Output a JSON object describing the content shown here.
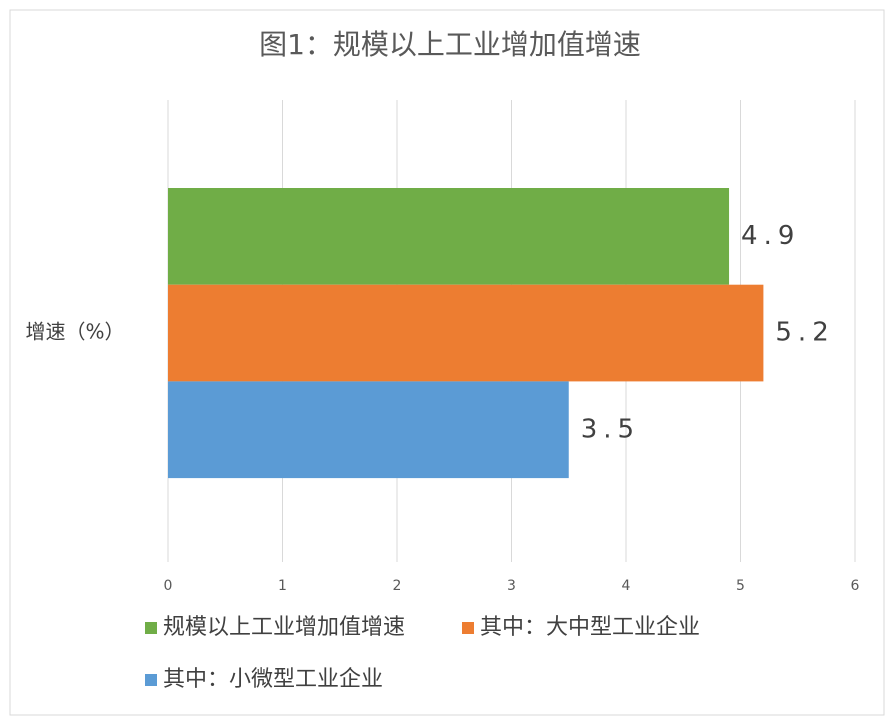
{
  "chart_data": {
    "type": "bar",
    "orientation": "horizontal",
    "title": "图1：规模以上工业增加值增速",
    "categories": [
      "增速（%）"
    ],
    "series": [
      {
        "name": "规模以上工业增加值增速",
        "color": "#70ad47",
        "values": [
          4.9
        ]
      },
      {
        "name": "其中：大中型工业企业",
        "color": "#ed7d31",
        "values": [
          5.2
        ]
      },
      {
        "name": "其中：小微型工业企业",
        "color": "#5b9bd5",
        "values": [
          3.5
        ]
      }
    ],
    "xlim": [
      0,
      6
    ],
    "xticks": [
      0,
      1,
      2,
      3,
      4,
      5,
      6
    ],
    "grid": true,
    "legend": "bottom"
  }
}
